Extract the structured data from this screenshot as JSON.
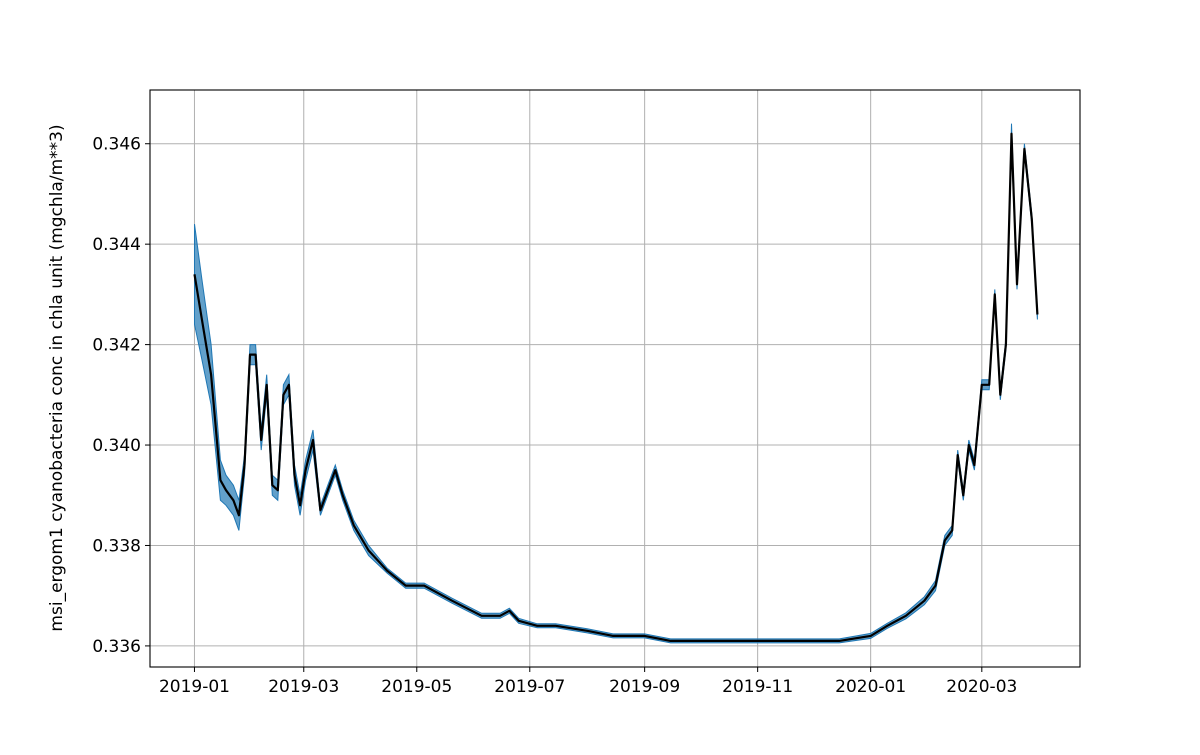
{
  "chart_data": {
    "type": "line",
    "title": "",
    "xlabel": "",
    "ylabel": "msi_ergom1 cyanobacteria conc in chla unit (mgchla/m**3)",
    "x_ticks": [
      "2019-01",
      "2019-03",
      "2019-05",
      "2019-07",
      "2019-09",
      "2019-11",
      "2020-01",
      "2020-03"
    ],
    "y_ticks": [
      "0.336",
      "0.338",
      "0.340",
      "0.342",
      "0.344",
      "0.346"
    ],
    "xlim": [
      "2018-12-08",
      "2020-04-23"
    ],
    "ylim": [
      0.33558,
      0.34707
    ],
    "grid": true,
    "colors": {
      "line": "#000000",
      "band": "#1f77b4"
    },
    "series": [
      {
        "x": [
          "2019-01-01",
          "2019-01-05",
          "2019-01-10",
          "2019-01-15",
          "2019-01-18",
          "2019-01-22",
          "2019-01-25",
          "2019-01-28",
          "2019-01-31",
          "2019-02-03",
          "2019-02-06",
          "2019-02-09",
          "2019-02-12",
          "2019-02-15",
          "2019-02-18",
          "2019-02-21",
          "2019-02-24",
          "2019-02-27",
          "2019-03-02",
          "2019-03-06",
          "2019-03-10",
          "2019-03-14",
          "2019-03-18",
          "2019-03-22",
          "2019-03-28",
          "2019-04-05",
          "2019-04-15",
          "2019-04-25",
          "2019-05-05",
          "2019-05-20",
          "2019-06-05",
          "2019-06-15",
          "2019-06-20",
          "2019-06-25",
          "2019-07-05",
          "2019-07-15",
          "2019-08-01",
          "2019-08-15",
          "2019-09-01",
          "2019-09-15",
          "2019-10-01",
          "2019-10-15",
          "2019-11-01",
          "2019-11-15",
          "2019-12-01",
          "2019-12-15",
          "2020-01-01",
          "2020-01-10",
          "2020-01-20",
          "2020-01-30",
          "2020-02-05",
          "2020-02-10",
          "2020-02-14",
          "2020-02-17",
          "2020-02-20",
          "2020-02-23",
          "2020-02-26",
          "2020-03-01",
          "2020-03-05",
          "2020-03-08",
          "2020-03-11",
          "2020-03-14",
          "2020-03-17",
          "2020-03-20",
          "2020-03-24",
          "2020-03-28",
          "2020-03-31"
        ],
        "y": [
          0.3434,
          0.3425,
          0.3414,
          0.3393,
          0.3391,
          0.3389,
          0.3386,
          0.3396,
          0.3418,
          0.3418,
          0.3401,
          0.3412,
          0.3392,
          0.3391,
          0.341,
          0.3412,
          0.3394,
          0.3388,
          0.3395,
          0.3401,
          0.3387,
          0.3391,
          0.3395,
          0.339,
          0.3384,
          0.3379,
          0.3375,
          0.3372,
          0.3372,
          0.3369,
          0.3366,
          0.3366,
          0.3367,
          0.3365,
          0.3364,
          0.3364,
          0.3363,
          0.3362,
          0.3362,
          0.3361,
          0.3361,
          0.3361,
          0.3361,
          0.3361,
          0.3361,
          0.3361,
          0.3362,
          0.3364,
          0.3366,
          0.3369,
          0.3372,
          0.3381,
          0.3383,
          0.3398,
          0.339,
          0.34,
          0.3396,
          0.3412,
          0.3412,
          0.343,
          0.341,
          0.342,
          0.3462,
          0.3432,
          0.3459,
          0.3445,
          0.3426
        ],
        "band": [
          0.001,
          0.0008,
          0.0006,
          0.0004,
          0.0003,
          0.0003,
          0.0003,
          0.0002,
          0.0002,
          0.0002,
          0.0002,
          0.0002,
          0.0002,
          0.0002,
          0.0002,
          0.0002,
          0.0002,
          0.0002,
          0.0002,
          0.0002,
          0.0001,
          0.0001,
          0.0001,
          0.0001,
          0.0001,
          0.0001,
          5e-05,
          5e-05,
          5e-05,
          5e-05,
          5e-05,
          5e-05,
          5e-05,
          5e-05,
          4e-05,
          4e-05,
          4e-05,
          4e-05,
          4e-05,
          4e-05,
          4e-05,
          4e-05,
          4e-05,
          4e-05,
          4e-05,
          4e-05,
          5e-05,
          5e-05,
          6e-05,
          8e-05,
          0.0001,
          0.0001,
          0.0001,
          0.0001,
          0.0001,
          0.0001,
          0.0001,
          0.0001,
          0.0001,
          0.0001,
          0.0001,
          0.0001,
          0.0002,
          0.0001,
          0.0001,
          0.0001,
          0.0001
        ]
      }
    ]
  }
}
